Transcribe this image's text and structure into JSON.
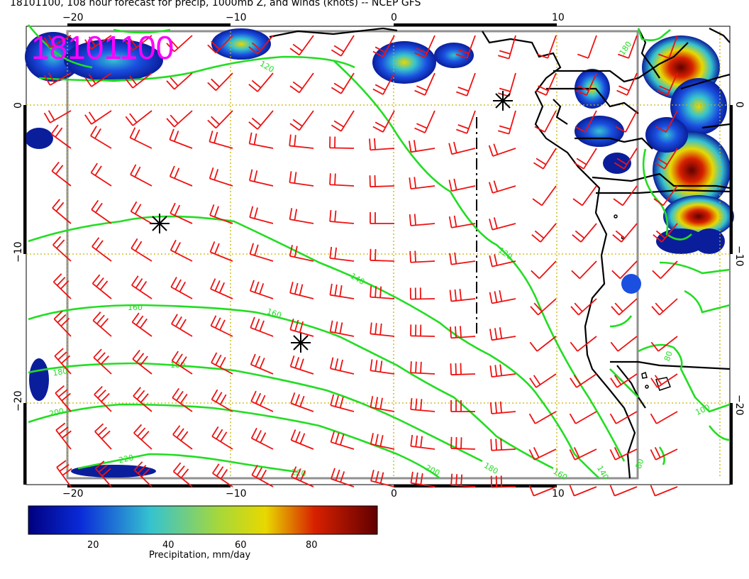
{
  "title": "18101100, 108 hour forecast for precip, 1000mb Z, and winds (knots) -- NCEP GFS",
  "stamp": "18101100",
  "lon_ticks": [
    "−20",
    "−10",
    "0",
    "10"
  ],
  "lat_ticks": [
    "0",
    "−10",
    "−20"
  ],
  "contour_labels": [
    "120",
    "120",
    "140",
    "160",
    "160",
    "180",
    "180",
    "180",
    "200",
    "200",
    "220",
    "220",
    "180",
    "160",
    "140",
    "100",
    "80",
    "80"
  ],
  "colorbar": {
    "label": "Precipitation, mm/day",
    "ticks": [
      "20",
      "40",
      "60",
      "80"
    ]
  },
  "colors": {
    "precip_low": "#0a1e9c",
    "precip_mid": "#35c3d0",
    "precip_high": "#b20000",
    "contour": "#22dd22",
    "barbs": "#ee1111",
    "grid": "#c8b400",
    "stamp": "#ff00ff"
  }
}
